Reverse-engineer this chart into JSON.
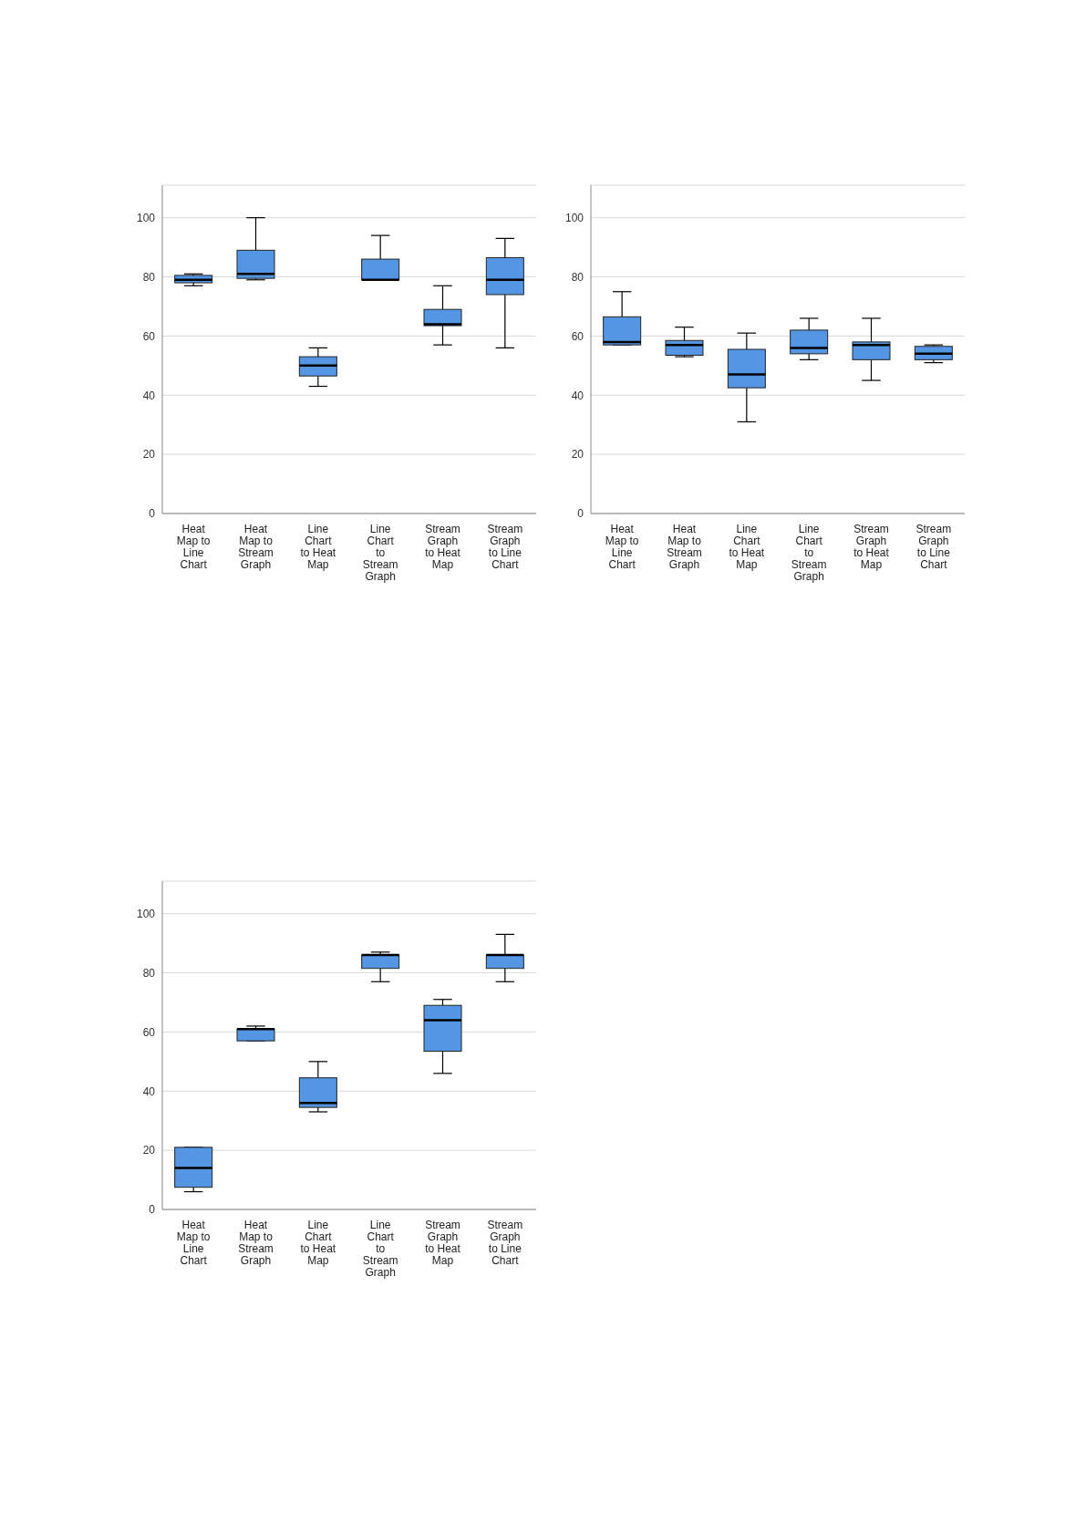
{
  "chart_data": [
    {
      "type": "box",
      "categories": [
        "Heat Map to Line Chart",
        "Heat Map to Stream Graph",
        "Line Chart to Heat Map",
        "Line Chart to Stream Graph",
        "Stream Graph to Heat Map",
        "Stream Graph to Line Chart"
      ],
      "color": "#5596e4",
      "ylim": [
        0,
        111
      ],
      "yticks": [
        0,
        20,
        40,
        60,
        80,
        100
      ],
      "grid": "y",
      "boxes": [
        {
          "low": 77,
          "q1": 78,
          "median": 79,
          "q3": 80.5,
          "high": 81
        },
        {
          "low": 79,
          "q1": 79.5,
          "median": 81,
          "q3": 89,
          "high": 100
        },
        {
          "low": 43,
          "q1": 46.5,
          "median": 50,
          "q3": 53,
          "high": 56
        },
        {
          "low": 79,
          "q1": 79,
          "median": 79,
          "q3": 86,
          "high": 94
        },
        {
          "low": 57,
          "q1": 63.5,
          "median": 64,
          "q3": 69,
          "high": 77
        },
        {
          "low": 56,
          "q1": 74,
          "median": 79,
          "q3": 86.5,
          "high": 93
        }
      ]
    },
    {
      "type": "box",
      "categories": [
        "Heat Map to Line Chart",
        "Heat Map to Stream Graph",
        "Line Chart to Heat Map",
        "Line Chart to Stream Graph",
        "Stream Graph to Heat Map",
        "Stream Graph to Line Chart"
      ],
      "color": "#5596e4",
      "ylim": [
        0,
        111
      ],
      "yticks": [
        0,
        20,
        40,
        60,
        80,
        100
      ],
      "grid": "y",
      "boxes": [
        {
          "low": 57,
          "q1": 57,
          "median": 58,
          "q3": 66.5,
          "high": 75
        },
        {
          "low": 53,
          "q1": 53.5,
          "median": 57,
          "q3": 58.5,
          "high": 63
        },
        {
          "low": 31,
          "q1": 42.5,
          "median": 47,
          "q3": 55.5,
          "high": 61
        },
        {
          "low": 52,
          "q1": 54,
          "median": 56,
          "q3": 62,
          "high": 66
        },
        {
          "low": 45,
          "q1": 52,
          "median": 57,
          "q3": 58,
          "high": 66
        },
        {
          "low": 51,
          "q1": 52,
          "median": 54,
          "q3": 56.5,
          "high": 57
        }
      ]
    },
    {
      "type": "box",
      "categories": [
        "Heat Map to Line Chart",
        "Heat Map to Stream Graph",
        "Line Chart to Heat Map",
        "Line Chart to Stream Graph",
        "Stream Graph to Heat Map",
        "Stream Graph to Line Chart"
      ],
      "color": "#5596e4",
      "ylim": [
        0,
        111
      ],
      "yticks": [
        0,
        20,
        40,
        60,
        80,
        100
      ],
      "grid": "y",
      "boxes": [
        {
          "low": 6,
          "q1": 7.5,
          "median": 14,
          "q3": 21,
          "high": 21
        },
        {
          "low": 57,
          "q1": 57,
          "median": 61,
          "q3": 61,
          "high": 62
        },
        {
          "low": 33,
          "q1": 34.5,
          "median": 36,
          "q3": 44.5,
          "high": 50
        },
        {
          "low": 77,
          "q1": 81.5,
          "median": 86,
          "q3": 86,
          "high": 87
        },
        {
          "low": 46,
          "q1": 53.5,
          "median": 64,
          "q3": 69,
          "high": 71
        },
        {
          "low": 77,
          "q1": 81.5,
          "median": 86,
          "q3": 86,
          "high": 93
        }
      ]
    }
  ]
}
